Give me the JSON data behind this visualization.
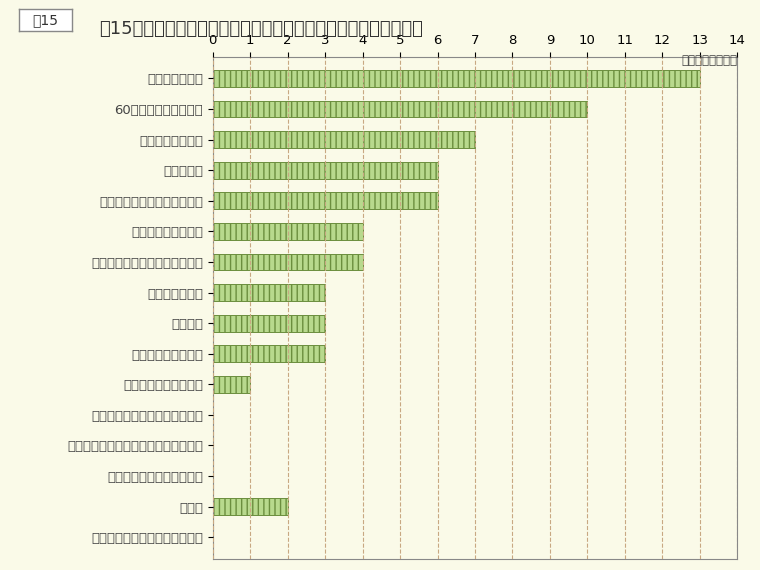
{
  "title": "図15　従業員数が少ない年齢層があることへの対応（複数回答）",
  "unit_label": "（単位：企業数）",
  "categories": [
    "中途採用の拡大",
    "60歳超の従業員の活用",
    "女性の登用の推進",
    "研修の充実",
    "賃金制度・人事制度の見直し",
    "非正規従業員の活用",
    "業務の外部化、業務範囲の縮小",
    "新規採用の拡大",
    "抜擢人事",
    "継続雇用制度の改革",
    "高度専門職制度の活用",
    "昇任・昇格における厳格な選抜",
    "他社等からの出向・派遣等の受入拡大",
    "退職勧奨等による人員削減",
    "その他",
    "特に取り組んでいる事項はない"
  ],
  "values": [
    13,
    10,
    7,
    6,
    6,
    4,
    4,
    3,
    3,
    3,
    1,
    0,
    0,
    0,
    2,
    0
  ],
  "xlim": [
    0,
    14
  ],
  "xticks": [
    0,
    1,
    2,
    3,
    4,
    5,
    6,
    7,
    8,
    9,
    10,
    11,
    12,
    13,
    14
  ],
  "bar_fill_color": "#b8d98d",
  "bar_edge_color": "#6b8e3e",
  "bar_hatch": "|||",
  "background_color": "#fafae8",
  "plot_bg_color": "#fafae8",
  "grid_color": "#c8a882",
  "title_color": "#333333",
  "label_color": "#444444",
  "title_fontsize": 13,
  "label_fontsize": 9.5,
  "tick_fontsize": 9.5
}
